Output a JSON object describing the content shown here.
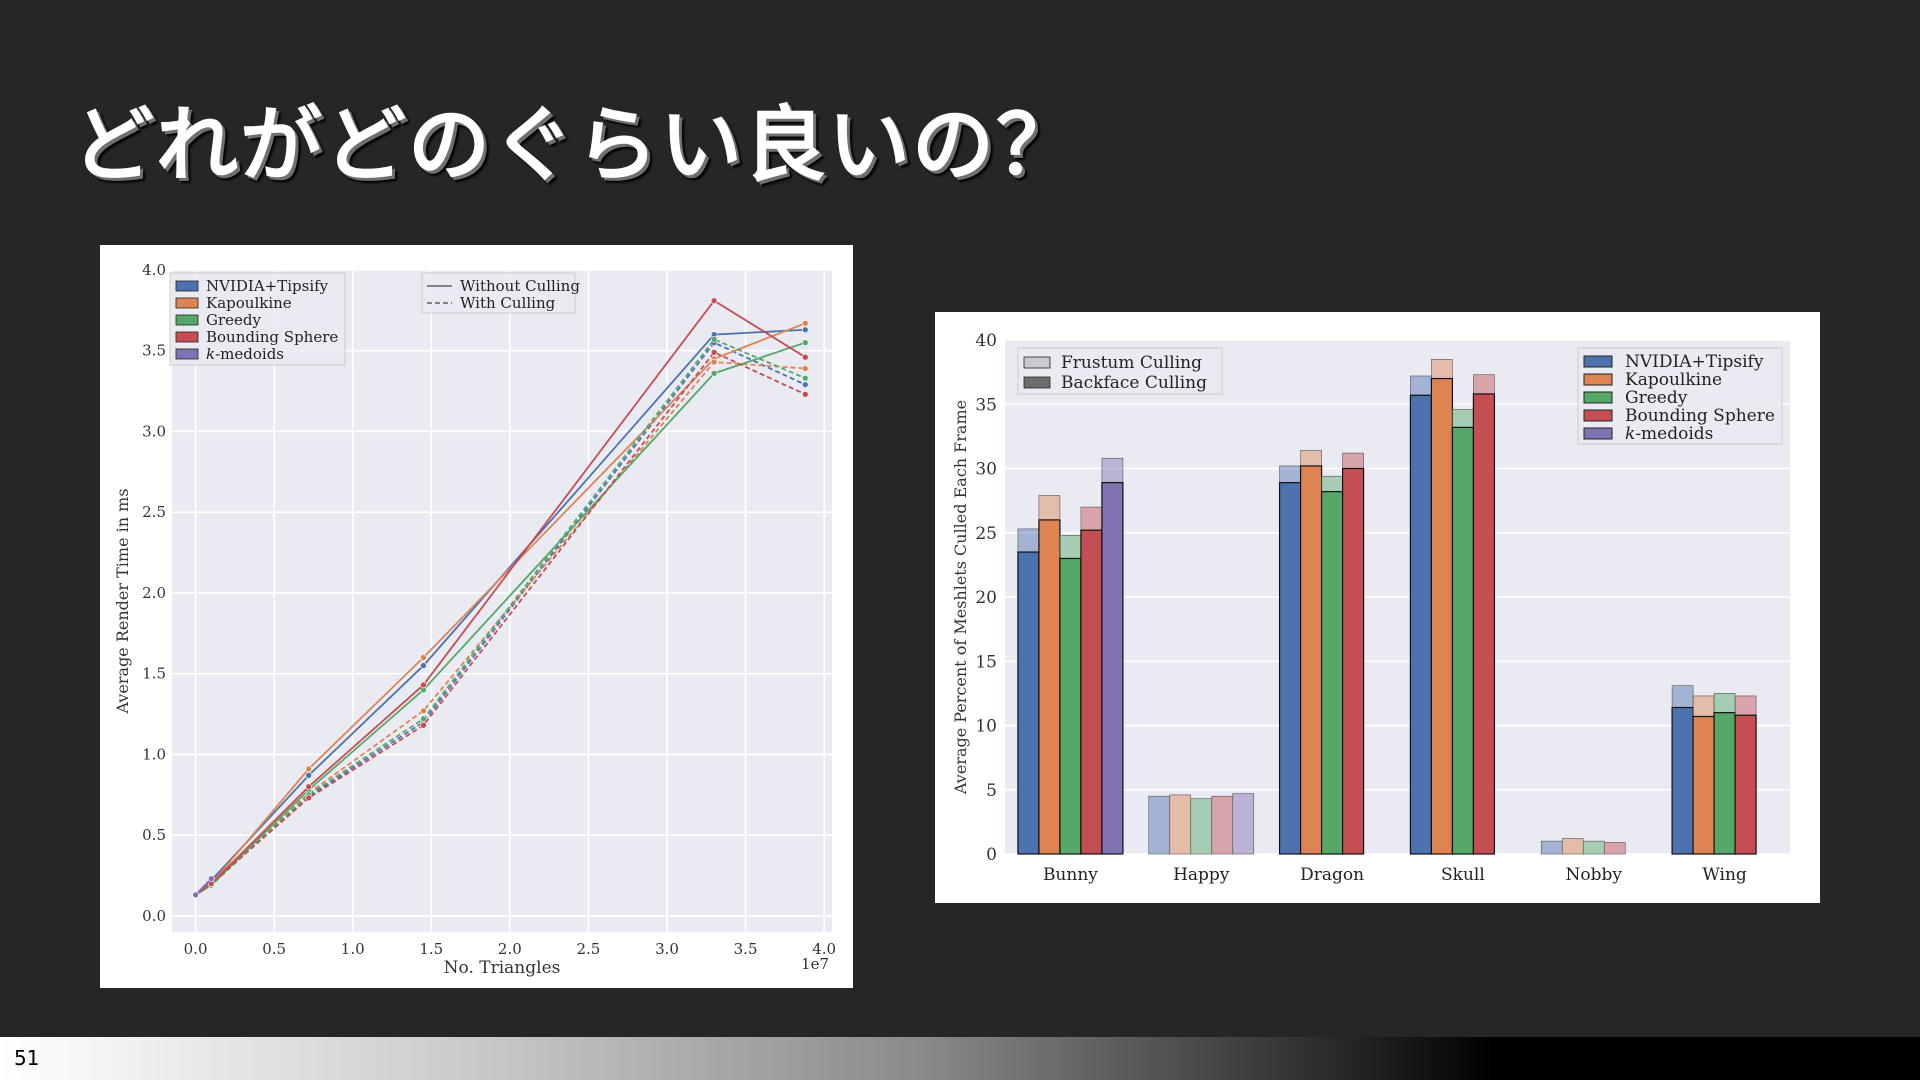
{
  "slide": {
    "title": "どれがどのぐらい良いの？",
    "page_number": "51"
  },
  "chart_data": [
    {
      "type": "line",
      "xlabel": "No. Triangles",
      "ylabel": "Average Render Time in ms",
      "x_offset_label": "1e7",
      "xlim": [
        -0.15,
        4.05
      ],
      "ylim": [
        -0.1,
        4.0
      ],
      "x_ticks": [
        "0.0",
        "0.5",
        "1.0",
        "1.5",
        "2.0",
        "2.5",
        "3.0",
        "3.5",
        "4.0"
      ],
      "y_ticks": [
        "0.0",
        "0.5",
        "1.0",
        "1.5",
        "2.0",
        "2.5",
        "3.0",
        "3.5",
        "4.0"
      ],
      "grid": true,
      "legend_placement": "top-left",
      "style_legend": {
        "placement": "top-center",
        "entries": [
          "Without Culling",
          "With Culling"
        ]
      },
      "x": [
        0.0,
        0.1,
        0.72,
        1.45,
        3.3,
        3.88
      ],
      "series": [
        {
          "name": "NVIDIA+Tipsify",
          "color": "#4c72b0",
          "without_culling": [
            0.13,
            0.22,
            0.87,
            1.55,
            3.6,
            3.63
          ],
          "with_culling": [
            0.13,
            0.2,
            0.74,
            1.2,
            3.55,
            3.29
          ]
        },
        {
          "name": "Kapoulkine",
          "color": "#dd8452",
          "without_culling": [
            0.13,
            0.2,
            0.91,
            1.6,
            3.45,
            3.67
          ],
          "with_culling": [
            0.13,
            0.2,
            0.76,
            1.27,
            3.43,
            3.39
          ]
        },
        {
          "name": "Greedy",
          "color": "#55a868",
          "without_culling": [
            0.13,
            0.19,
            0.78,
            1.4,
            3.36,
            3.55
          ],
          "with_culling": [
            0.13,
            0.19,
            0.75,
            1.22,
            3.57,
            3.33
          ]
        },
        {
          "name": "Bounding Sphere",
          "color": "#c44e52",
          "without_culling": [
            0.13,
            0.2,
            0.8,
            1.43,
            3.81,
            3.46
          ],
          "with_culling": [
            0.13,
            0.2,
            0.73,
            1.18,
            3.49,
            3.23
          ]
        },
        {
          "name": "k-medoids",
          "color": "#8172b3",
          "without_culling": [
            0.13,
            0.23,
            null,
            null,
            null,
            null
          ],
          "with_culling": [
            0.13,
            0.23,
            null,
            null,
            null,
            null
          ]
        }
      ]
    },
    {
      "type": "bar",
      "ylabel": "Average Percent of Meshlets Culled Each Frame",
      "ylim": [
        0,
        40
      ],
      "y_ticks": [
        "0",
        "5",
        "10",
        "15",
        "20",
        "25",
        "30",
        "35",
        "40"
      ],
      "grid": true,
      "categories": [
        "Bunny",
        "Happy",
        "Dragon",
        "Skull",
        "Nobby",
        "Wing"
      ],
      "culling_legend": {
        "placement": "top-left",
        "entries": [
          "Frustum Culling",
          "Backface Culling"
        ]
      },
      "legend_placement": "top-right",
      "series": [
        {
          "name": "NVIDIA+Tipsify",
          "color": "#4c72b0",
          "frustum_culling": [
            25.3,
            4.5,
            30.2,
            37.2,
            1.0,
            13.1
          ],
          "backface_culling": [
            23.5,
            0,
            28.9,
            35.7,
            0,
            11.4
          ]
        },
        {
          "name": "Kapoulkine",
          "color": "#dd8452",
          "frustum_culling": [
            27.9,
            4.6,
            31.4,
            38.5,
            1.2,
            12.3
          ],
          "backface_culling": [
            26.0,
            0,
            30.2,
            37.0,
            0,
            10.7
          ]
        },
        {
          "name": "Greedy",
          "color": "#55a868",
          "frustum_culling": [
            24.8,
            4.3,
            29.4,
            34.6,
            1.0,
            12.5
          ],
          "backface_culling": [
            23.0,
            0,
            28.2,
            33.2,
            0,
            11.0
          ]
        },
        {
          "name": "Bounding Sphere",
          "color": "#c44e52",
          "frustum_culling": [
            27.0,
            4.5,
            31.2,
            37.3,
            0.9,
            12.3
          ],
          "backface_culling": [
            25.2,
            0,
            30.0,
            35.8,
            0,
            10.8
          ]
        },
        {
          "name": "k-medoids",
          "color": "#8172b3",
          "frustum_culling": [
            30.8,
            4.7,
            null,
            null,
            null,
            null
          ],
          "backface_culling": [
            28.9,
            0,
            null,
            null,
            null,
            null
          ]
        }
      ]
    }
  ]
}
